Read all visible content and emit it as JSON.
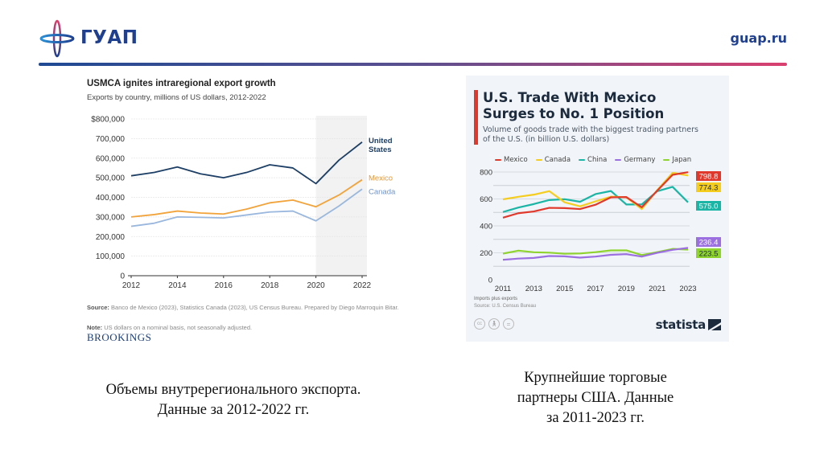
{
  "header": {
    "logo_text": "ГУАП",
    "site": "guap.ru",
    "colors": {
      "brand_blue": "#1f3f8f",
      "brand_pink": "#d9406f"
    }
  },
  "left_panel": {
    "title": "USMCA ignites intraregional export growth",
    "subtitle": "Exports by country, millions of US dollars, 2012-2022",
    "source_label": "Source:",
    "source_text": " Banco de Mexico (2023), Statistics Canada (2023), US Census Bureau. Prepared by Diego Marroquin Bitar.",
    "note_label": "Note:",
    "note_text": " US dollars on a nominal basis, not seasonally adjusted.",
    "brand": "BROOKINGS",
    "caption_line1": "Объемы внутререгионального экспорта.",
    "caption_line2": "Данные за 2012-2022 гг."
  },
  "right_panel": {
    "title_line1": "U.S. Trade With Mexico",
    "title_line2": "Surges to No. 1 Position",
    "subtitle_line1": "Volume of goods trade with the biggest trading partners",
    "subtitle_line2": "of the U.S. (in billion U.S. dollars)",
    "footnote": "Imports plus exports",
    "source": "Source: U.S. Census Bureau",
    "license_icons": [
      "cc-icon",
      "by-icon",
      "nd-icon"
    ],
    "brand": "statista",
    "caption_line1": "Крупнейшие торговые",
    "caption_line2": "партнеры США. Данные",
    "caption_line3": "за 2011-2023 гг."
  },
  "chart_data": [
    {
      "type": "line",
      "title": "USMCA ignites intraregional export growth",
      "subtitle": "Exports by country, millions of US dollars, 2012-2022",
      "xlabel": "",
      "ylabel": "",
      "x": [
        2012,
        2013,
        2014,
        2015,
        2016,
        2017,
        2018,
        2019,
        2020,
        2021,
        2022
      ],
      "x_ticks": [
        "2012",
        "2014",
        "2016",
        "2018",
        "2020",
        "2022"
      ],
      "y_ticks": [
        "0",
        "100,000",
        "200,000",
        "300,000",
        "400,000",
        "500,000",
        "600,000",
        "700,000",
        "$800,000"
      ],
      "ylim": [
        0,
        800000
      ],
      "xlim": [
        2012,
        2022
      ],
      "grid": true,
      "shaded_range": [
        2020,
        2022
      ],
      "legend": "direct-labels-right",
      "series": [
        {
          "name": "United States",
          "label_line1": "United",
          "label_line2": "States",
          "color": "#1d3f66",
          "values": [
            510000,
            527000,
            555000,
            520000,
            500000,
            527000,
            566000,
            550000,
            470000,
            590000,
            682000
          ]
        },
        {
          "name": "Mexico",
          "label_line1": "Mexico",
          "label_line2": "",
          "color": "#f2a33a",
          "values": [
            300000,
            312000,
            330000,
            320000,
            315000,
            340000,
            372000,
            386000,
            352000,
            412000,
            490000
          ]
        },
        {
          "name": "Canada",
          "label_line1": "Canada",
          "label_line2": "",
          "color": "#9ab7dd",
          "values": [
            252000,
            268000,
            300000,
            298000,
            295000,
            310000,
            325000,
            330000,
            280000,
            356000,
            442000
          ]
        }
      ]
    },
    {
      "type": "line",
      "title": "U.S. Trade With Mexico Surges to No. 1 Position",
      "subtitle": "Volume of goods trade with the biggest trading partners of the U.S. (in billion U.S. dollars)",
      "xlabel": "",
      "ylabel": "",
      "x": [
        2011,
        2012,
        2013,
        2014,
        2015,
        2016,
        2017,
        2018,
        2019,
        2020,
        2021,
        2022,
        2023
      ],
      "x_ticks": [
        "2011",
        "2013",
        "2015",
        "2017",
        "2019",
        "2021",
        "2023"
      ],
      "y_ticks": [
        "0",
        "200",
        "400",
        "600",
        "800"
      ],
      "ylim": [
        0,
        800
      ],
      "xlim": [
        2011,
        2023
      ],
      "grid": true,
      "legend": "top",
      "series": [
        {
          "name": "Mexico",
          "color": "#e0392b",
          "end_label": "798.8",
          "values": [
            461,
            494,
            507,
            534,
            532,
            525,
            557,
            612,
            614,
            538,
            661,
            779,
            798.8
          ]
        },
        {
          "name": "Canada",
          "color": "#f5cd1e",
          "end_label": "774.3",
          "values": [
            597,
            616,
            632,
            658,
            575,
            545,
            582,
            617,
            612,
            525,
            665,
            794,
            774.3
          ]
        },
        {
          "name": "China",
          "color": "#1ab5a5",
          "end_label": "575.0",
          "values": [
            503,
            536,
            562,
            592,
            598,
            579,
            636,
            659,
            559,
            559,
            657,
            690,
            575.0
          ]
        },
        {
          "name": "Germany",
          "color": "#9b6fe0",
          "end_label": "236.4",
          "values": [
            148,
            157,
            162,
            176,
            174,
            164,
            172,
            185,
            190,
            172,
            200,
            222,
            236.4
          ]
        },
        {
          "name": "Japan",
          "color": "#8fd32e",
          "end_label": "223.5",
          "values": [
            194,
            216,
            204,
            201,
            193,
            195,
            205,
            218,
            218,
            183,
            205,
            229,
            223.5
          ]
        }
      ]
    }
  ]
}
